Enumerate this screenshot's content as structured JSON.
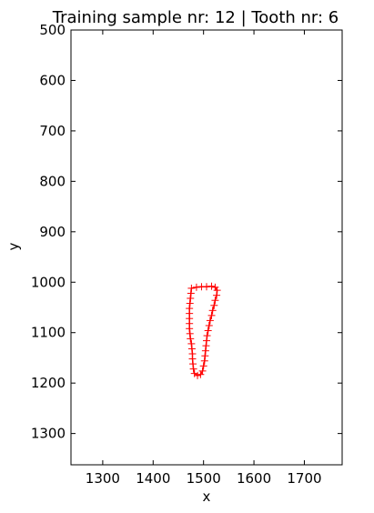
{
  "chart_data": {
    "type": "line",
    "title": "Training sample nr: 12 | Tooth nr: 6",
    "xlabel": "x",
    "ylabel": "y",
    "xlim": [
      1237,
      1775
    ],
    "ylim": [
      1362,
      500
    ],
    "y_inverted": true,
    "xticks": [
      1300,
      1400,
      1500,
      1600,
      1700
    ],
    "yticks": [
      500,
      600,
      700,
      800,
      900,
      1000,
      1100,
      1200,
      1300
    ],
    "grid": false,
    "series": [
      {
        "color": "#ff0000",
        "marker": "plus",
        "closed": true,
        "points": [
          [
            1476,
            1012
          ],
          [
            1486,
            1010
          ],
          [
            1496,
            1009
          ],
          [
            1506,
            1009
          ],
          [
            1516,
            1008
          ],
          [
            1523,
            1010
          ],
          [
            1527,
            1016
          ],
          [
            1526,
            1026
          ],
          [
            1523,
            1036
          ],
          [
            1521,
            1046
          ],
          [
            1518,
            1056
          ],
          [
            1516,
            1066
          ],
          [
            1513,
            1076
          ],
          [
            1511,
            1086
          ],
          [
            1509,
            1096
          ],
          [
            1507,
            1106
          ],
          [
            1506,
            1116
          ],
          [
            1505,
            1126
          ],
          [
            1504,
            1136
          ],
          [
            1503,
            1146
          ],
          [
            1502,
            1156
          ],
          [
            1500,
            1166
          ],
          [
            1498,
            1176
          ],
          [
            1494,
            1183
          ],
          [
            1488,
            1185
          ],
          [
            1482,
            1181
          ],
          [
            1480,
            1172
          ],
          [
            1479,
            1162
          ],
          [
            1478,
            1152
          ],
          [
            1478,
            1142
          ],
          [
            1477,
            1132
          ],
          [
            1476,
            1122
          ],
          [
            1474,
            1112
          ],
          [
            1473,
            1102
          ],
          [
            1472,
            1092
          ],
          [
            1472,
            1082
          ],
          [
            1472,
            1072
          ],
          [
            1472,
            1062
          ],
          [
            1472,
            1052
          ],
          [
            1473,
            1042
          ],
          [
            1474,
            1032
          ],
          [
            1475,
            1022
          ]
        ]
      }
    ]
  }
}
